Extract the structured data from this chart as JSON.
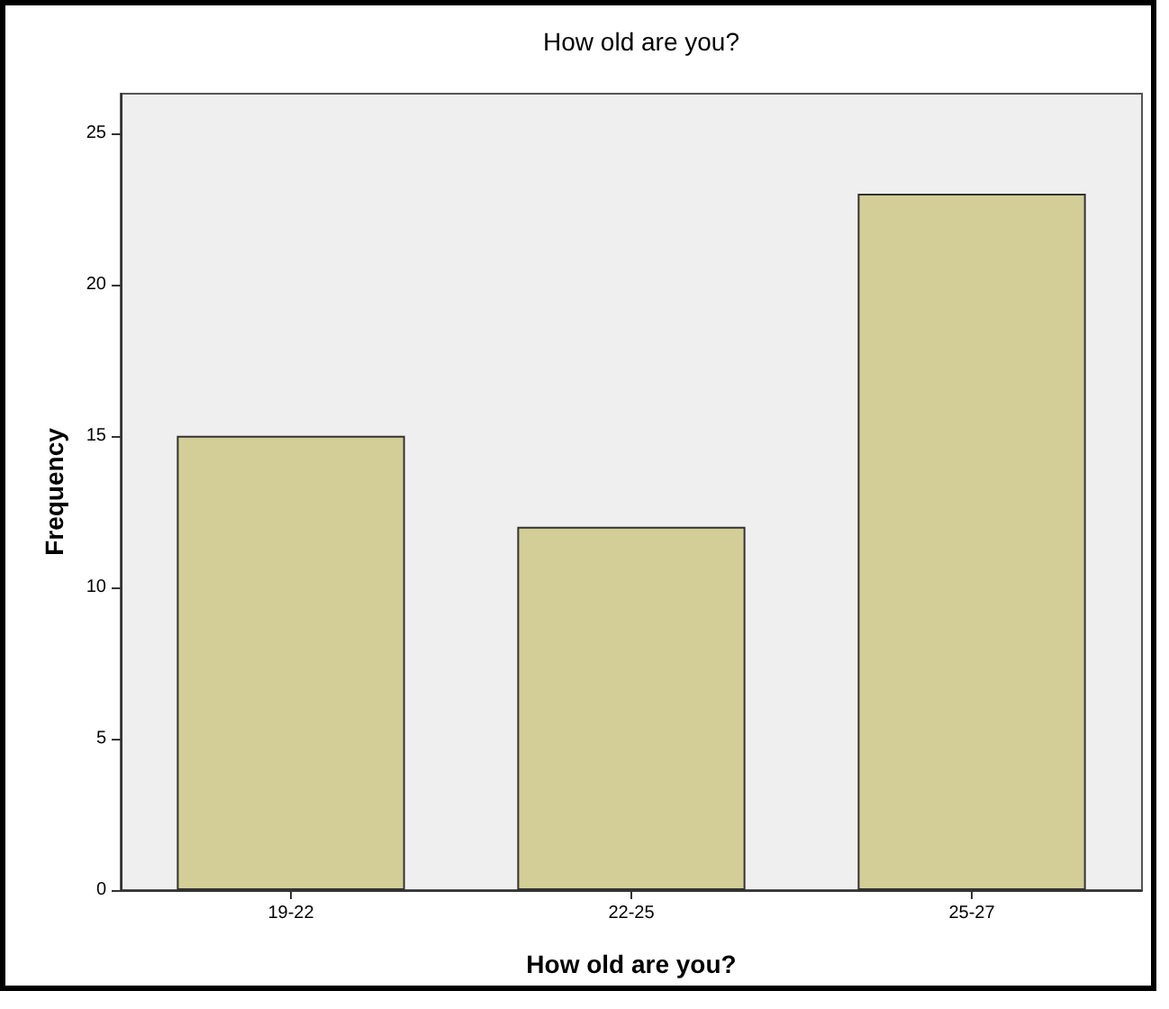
{
  "chart_data": {
    "type": "bar",
    "title": "How old are you?",
    "xlabel": "How old are you?",
    "ylabel": "Frequency",
    "categories": [
      "19-22",
      "22-25",
      "25-27"
    ],
    "values": [
      15,
      12,
      23
    ],
    "color": "#d3ce97",
    "ylim": [
      0,
      26.3
    ],
    "yticks": [
      0,
      5,
      10,
      15,
      20,
      25
    ]
  }
}
